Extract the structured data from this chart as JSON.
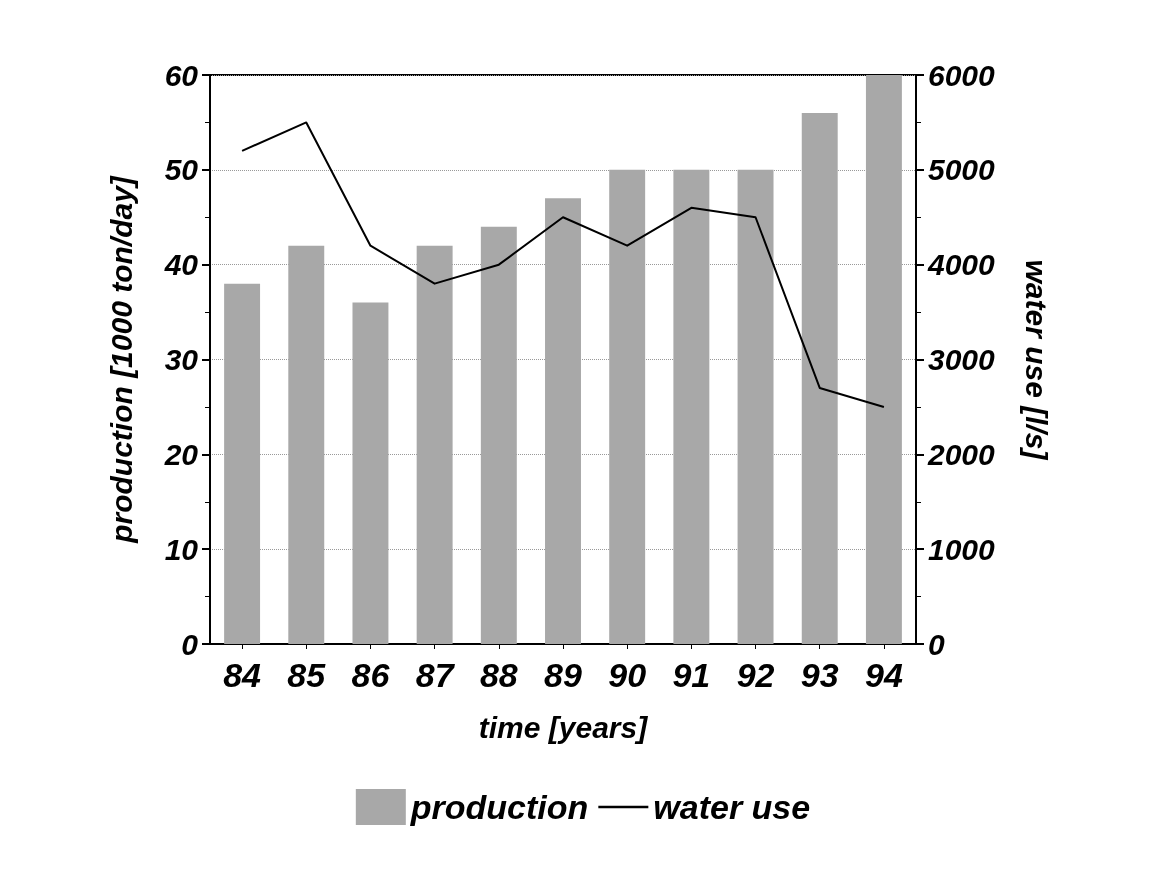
{
  "chart_data": {
    "type": "bar",
    "xlabel": "time [years]",
    "ylabel": "production [1000 ton/day]",
    "y2label": "water use [l/s]",
    "categories": [
      "84",
      "85",
      "86",
      "87",
      "88",
      "89",
      "90",
      "91",
      "92",
      "93",
      "94"
    ],
    "series": [
      {
        "name": "production",
        "color": "#a8a8a8",
        "values": [
          38,
          42,
          36,
          42,
          44,
          47,
          50,
          50,
          50,
          56,
          60
        ]
      },
      {
        "name": "water use",
        "type": "line",
        "axis": "y2",
        "color": "#000000",
        "values": [
          5200,
          5500,
          4200,
          3800,
          4000,
          4500,
          4200,
          4600,
          4500,
          2700,
          2500
        ]
      }
    ],
    "ylim": [
      0,
      60
    ],
    "yticks": [
      0,
      10,
      20,
      30,
      40,
      50,
      60
    ],
    "y2lim": [
      0,
      6000
    ],
    "y2ticks": [
      0,
      1000,
      2000,
      3000,
      4000,
      5000,
      6000
    ],
    "grid": "y",
    "legend": "bottom",
    "marker": "none",
    "line_style": "solid"
  }
}
